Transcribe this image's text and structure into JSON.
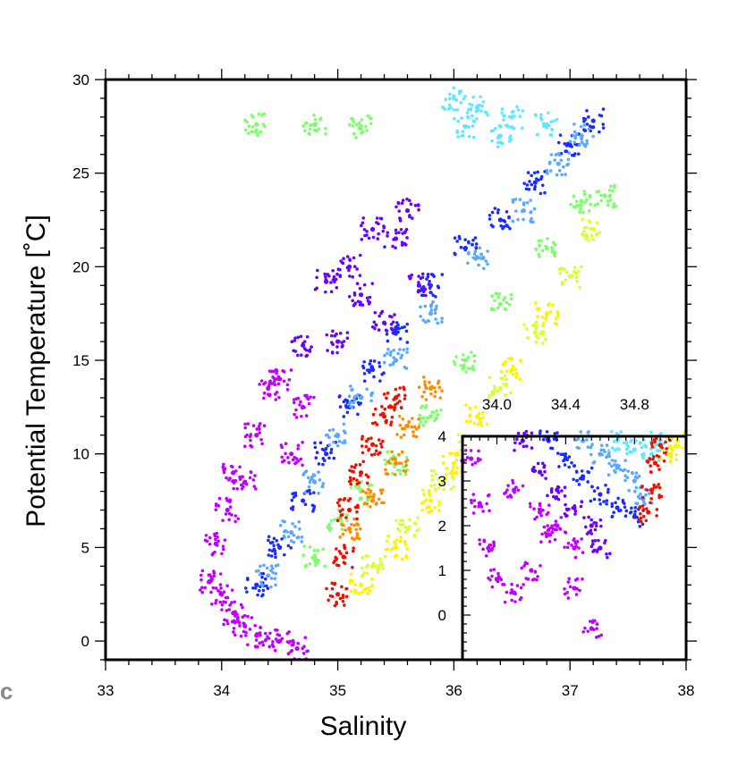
{
  "panel_label": "c",
  "chart_data": [
    {
      "type": "scatter",
      "xlabel": "Salinity",
      "ylabel": "Potential Temperature [˚C]",
      "xlim": [
        33,
        38
      ],
      "ylim": [
        -1,
        30
      ],
      "xticks": [
        "33",
        "34",
        "35",
        "36",
        "37",
        "38"
      ],
      "yticks": [
        "0",
        "5",
        "10",
        "15",
        "20",
        "25",
        "30"
      ],
      "color_scale": [
        "#b400ff",
        "#7a00ff",
        "#2a3cff",
        "#2a8cff",
        "#59d6ff",
        "#7cff6a",
        "#d8ff33",
        "#fff200",
        "#ffb000",
        "#ff5a00",
        "#e60000"
      ],
      "series": [
        {
          "color": "#c000ff",
          "points": [
            [
              33.9,
              3.2
            ],
            [
              34.0,
              2.5
            ],
            [
              34.1,
              1.5
            ],
            [
              34.2,
              0.8
            ],
            [
              34.3,
              0.3
            ],
            [
              34.5,
              0.0
            ],
            [
              34.65,
              -0.4
            ],
            [
              33.95,
              5.2
            ],
            [
              34.05,
              7.0
            ],
            [
              34.1,
              9.0
            ],
            [
              34.2,
              8.5
            ],
            [
              34.3,
              11.0
            ],
            [
              34.4,
              13.5
            ],
            [
              34.5,
              14.0
            ],
            [
              34.6,
              10.0
            ],
            [
              34.7,
              12.5
            ]
          ]
        },
        {
          "color": "#6a00ff",
          "points": [
            [
              34.7,
              15.8
            ],
            [
              34.9,
              19.2
            ],
            [
              35.0,
              16.0
            ],
            [
              35.1,
              20.0
            ],
            [
              35.2,
              18.5
            ],
            [
              35.3,
              22.0
            ],
            [
              35.4,
              17.0
            ],
            [
              35.5,
              21.5
            ],
            [
              35.6,
              23.0
            ],
            [
              35.7,
              19.0
            ]
          ]
        },
        {
          "color": "#1a2cff",
          "points": [
            [
              34.3,
              3.0
            ],
            [
              34.5,
              5.0
            ],
            [
              34.7,
              7.5
            ],
            [
              34.9,
              10.0
            ],
            [
              35.1,
              12.5
            ],
            [
              35.3,
              14.5
            ],
            [
              35.5,
              16.5
            ],
            [
              35.8,
              19.0
            ],
            [
              36.1,
              21.0
            ],
            [
              36.4,
              22.5
            ],
            [
              36.7,
              24.5
            ],
            [
              37.0,
              26.5
            ],
            [
              37.2,
              27.8
            ]
          ]
        },
        {
          "color": "#5aa8ff",
          "points": [
            [
              34.4,
              3.5
            ],
            [
              34.6,
              5.8
            ],
            [
              34.8,
              8.5
            ],
            [
              35.0,
              11.0
            ],
            [
              35.2,
              13.0
            ],
            [
              35.5,
              15.0
            ],
            [
              35.8,
              17.5
            ],
            [
              36.2,
              20.5
            ],
            [
              36.6,
              23.0
            ],
            [
              36.9,
              25.5
            ],
            [
              37.1,
              27.0
            ]
          ]
        },
        {
          "color": "#5fe8ff",
          "points": [
            [
              36.0,
              29.0
            ],
            [
              36.2,
              28.5
            ],
            [
              36.5,
              28.0
            ],
            [
              36.8,
              27.6
            ],
            [
              36.4,
              27.0
            ],
            [
              36.1,
              27.5
            ]
          ]
        },
        {
          "color": "#7cff6a",
          "points": [
            [
              34.8,
              4.5
            ],
            [
              35.0,
              6.5
            ],
            [
              35.2,
              8.0
            ],
            [
              35.5,
              9.5
            ],
            [
              35.8,
              12.0
            ],
            [
              36.1,
              15.0
            ],
            [
              36.4,
              18.0
            ],
            [
              36.8,
              21.0
            ],
            [
              37.1,
              23.5
            ],
            [
              37.3,
              23.8
            ],
            [
              34.3,
              27.6
            ],
            [
              34.8,
              27.6
            ],
            [
              35.2,
              27.5
            ]
          ]
        },
        {
          "color": "#d8ff33",
          "points": [
            [
              35.3,
              4.0
            ],
            [
              35.6,
              6.0
            ],
            [
              35.9,
              8.5
            ],
            [
              36.1,
              10.5
            ],
            [
              36.4,
              13.5
            ],
            [
              36.7,
              16.5
            ],
            [
              37.0,
              19.5
            ],
            [
              37.2,
              22.0
            ]
          ]
        },
        {
          "color": "#fff200",
          "points": [
            [
              35.2,
              3.0
            ],
            [
              35.5,
              5.0
            ],
            [
              35.8,
              7.5
            ],
            [
              36.0,
              9.5
            ],
            [
              36.2,
              12.0
            ],
            [
              36.5,
              14.5
            ],
            [
              36.8,
              17.5
            ]
          ]
        },
        {
          "color": "#ff8a00",
          "points": [
            [
              35.1,
              6.0
            ],
            [
              35.3,
              7.5
            ],
            [
              35.5,
              9.5
            ],
            [
              35.6,
              11.5
            ],
            [
              35.8,
              13.5
            ]
          ]
        },
        {
          "color": "#e61400",
          "points": [
            [
              35.0,
              2.5
            ],
            [
              35.05,
              4.5
            ],
            [
              35.1,
              7.0
            ],
            [
              35.2,
              9.0
            ],
            [
              35.3,
              10.5
            ],
            [
              35.4,
              12.0
            ],
            [
              35.5,
              13.0
            ]
          ]
        }
      ]
    },
    {
      "type": "scatter",
      "xlim": [
        33.8,
        35.1
      ],
      "ylim": [
        -1,
        4
      ],
      "xticks": [
        "34.0",
        "34.4",
        "34.8"
      ],
      "yticks": [
        "0",
        "1",
        "2",
        "3",
        "4"
      ],
      "series": [
        {
          "color": "#c000ff",
          "points": [
            [
              33.85,
              3.5
            ],
            [
              33.9,
              2.5
            ],
            [
              33.95,
              1.5
            ],
            [
              34.0,
              0.8
            ],
            [
              34.1,
              0.5
            ],
            [
              34.2,
              1.0
            ],
            [
              34.3,
              1.8
            ],
            [
              34.45,
              0.6
            ],
            [
              34.55,
              -0.3
            ],
            [
              34.1,
              2.8
            ],
            [
              34.25,
              2.3
            ],
            [
              34.35,
              2.0
            ],
            [
              34.45,
              1.5
            ]
          ]
        },
        {
          "color": "#6a00ff",
          "points": [
            [
              34.15,
              3.9
            ],
            [
              34.25,
              3.2
            ],
            [
              34.35,
              2.8
            ],
            [
              34.45,
              2.4
            ],
            [
              34.55,
              2.0
            ],
            [
              34.6,
              1.5
            ]
          ]
        },
        {
          "color": "#1a2cff",
          "points": [
            [
              34.3,
              3.9
            ],
            [
              34.4,
              3.5
            ],
            [
              34.5,
              3.1
            ],
            [
              34.6,
              2.7
            ],
            [
              34.7,
              2.4
            ],
            [
              34.8,
              2.2
            ]
          ]
        },
        {
          "color": "#5aa8ff",
          "points": [
            [
              34.5,
              3.9
            ],
            [
              34.6,
              3.6
            ],
            [
              34.7,
              3.3
            ],
            [
              34.8,
              3.0
            ],
            [
              34.85,
              2.6
            ]
          ]
        },
        {
          "color": "#5fe8ff",
          "points": [
            [
              34.7,
              3.9
            ],
            [
              34.8,
              3.7
            ],
            [
              34.9,
              3.6
            ],
            [
              34.95,
              3.9
            ]
          ]
        },
        {
          "color": "#e61400",
          "points": [
            [
              34.88,
              2.3
            ],
            [
              34.9,
              2.8
            ],
            [
              34.92,
              3.4
            ],
            [
              34.95,
              3.8
            ]
          ]
        },
        {
          "color": "#fff200",
          "points": [
            [
              35.0,
              3.6
            ],
            [
              35.05,
              3.9
            ]
          ]
        }
      ]
    }
  ]
}
